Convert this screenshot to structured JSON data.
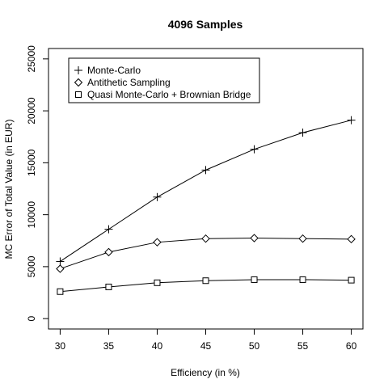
{
  "chart_data": {
    "type": "line",
    "title": "4096 Samples",
    "xlabel": "Efficiency (in %)",
    "ylabel": "MC Error of Total Value (in EUR)",
    "x": [
      30,
      35,
      40,
      45,
      50,
      55,
      60
    ],
    "xlim": [
      28.8,
      61.2
    ],
    "ylim": [
      -1000,
      26000
    ],
    "xticks": [
      30,
      35,
      40,
      45,
      50,
      55,
      60
    ],
    "yticks": [
      0,
      5000,
      10000,
      15000,
      20000,
      25000
    ],
    "grid": false,
    "legend_position": "top-left",
    "series": [
      {
        "name": "Monte-Carlo",
        "marker": "plus",
        "values": [
          5500,
          8600,
          11700,
          14300,
          16300,
          17900,
          19100
        ]
      },
      {
        "name": "Antithetic Sampling",
        "marker": "diamond",
        "values": [
          4800,
          6400,
          7350,
          7700,
          7750,
          7700,
          7650
        ]
      },
      {
        "name": "Quasi Monte-Carlo + Brownian Bridge",
        "marker": "square",
        "values": [
          2600,
          3050,
          3450,
          3650,
          3750,
          3750,
          3700
        ]
      }
    ]
  }
}
